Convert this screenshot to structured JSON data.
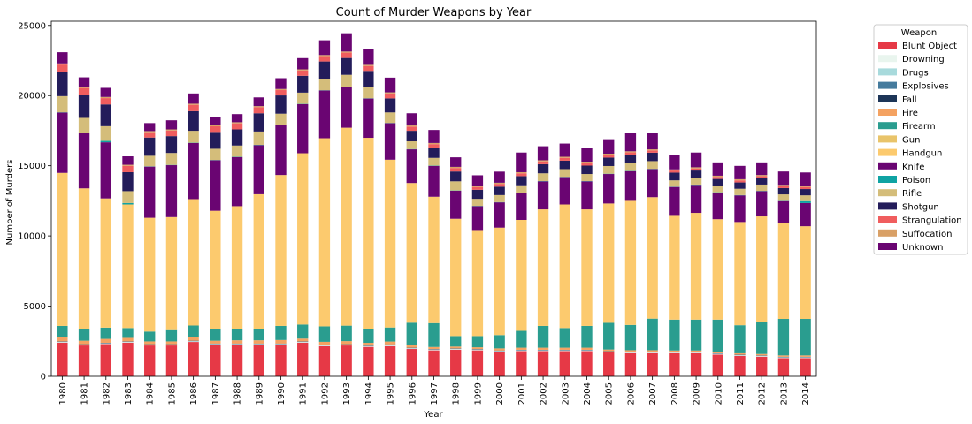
{
  "chart_data": {
    "type": "bar",
    "stacked": true,
    "title": "Count of Murder Weapons by Year",
    "xlabel": "Year",
    "ylabel": "Number of Murders",
    "ylim": [
      0,
      25300
    ],
    "yticks": [
      0,
      5000,
      10000,
      15000,
      20000,
      25000
    ],
    "grid": false,
    "legend_title": "Weapon",
    "legend_position": "outside-right",
    "categories": [
      "1980",
      "1981",
      "1982",
      "1983",
      "1984",
      "1985",
      "1986",
      "1987",
      "1988",
      "1989",
      "1990",
      "1991",
      "1992",
      "1993",
      "1994",
      "1995",
      "1996",
      "1997",
      "1998",
      "1999",
      "2000",
      "2001",
      "2002",
      "2003",
      "2004",
      "2005",
      "2006",
      "2007",
      "2008",
      "2009",
      "2010",
      "2011",
      "2012",
      "2013",
      "2014"
    ],
    "series": [
      {
        "name": "Blunt Object",
        "color": "#e63946",
        "values": [
          2400,
          2200,
          2300,
          2400,
          2200,
          2200,
          2450,
          2250,
          2250,
          2250,
          2250,
          2400,
          2150,
          2200,
          2100,
          2150,
          1950,
          1850,
          1900,
          1850,
          1750,
          1800,
          1800,
          1800,
          1800,
          1700,
          1650,
          1650,
          1650,
          1650,
          1550,
          1450,
          1400,
          1300,
          1300
        ]
      },
      {
        "name": "Drowning",
        "color": "#e9f5ee",
        "values": [
          30,
          30,
          30,
          30,
          30,
          30,
          30,
          30,
          30,
          30,
          30,
          30,
          30,
          30,
          30,
          30,
          30,
          30,
          30,
          30,
          30,
          30,
          30,
          30,
          30,
          30,
          30,
          30,
          30,
          30,
          30,
          30,
          30,
          30,
          30
        ]
      },
      {
        "name": "Drugs",
        "color": "#a8dadc",
        "values": [
          20,
          20,
          20,
          20,
          20,
          20,
          20,
          20,
          20,
          20,
          20,
          20,
          20,
          20,
          20,
          20,
          20,
          20,
          20,
          20,
          20,
          20,
          20,
          20,
          20,
          20,
          20,
          20,
          20,
          20,
          20,
          20,
          20,
          20,
          20
        ]
      },
      {
        "name": "Explosives",
        "color": "#457b9d",
        "values": [
          20,
          20,
          20,
          20,
          20,
          20,
          20,
          20,
          20,
          20,
          20,
          20,
          20,
          20,
          20,
          60,
          20,
          20,
          20,
          20,
          20,
          20,
          20,
          20,
          20,
          20,
          20,
          20,
          20,
          20,
          20,
          20,
          20,
          20,
          20
        ]
      },
      {
        "name": "Fall",
        "color": "#1d3557",
        "values": [
          20,
          20,
          20,
          20,
          20,
          20,
          20,
          20,
          20,
          20,
          20,
          20,
          20,
          20,
          20,
          20,
          20,
          20,
          20,
          20,
          20,
          20,
          20,
          20,
          20,
          20,
          20,
          20,
          20,
          20,
          20,
          20,
          20,
          20,
          20
        ]
      },
      {
        "name": "Fire",
        "color": "#f4a261",
        "values": [
          300,
          250,
          280,
          250,
          200,
          200,
          280,
          200,
          230,
          230,
          250,
          200,
          220,
          220,
          200,
          200,
          180,
          150,
          130,
          130,
          150,
          150,
          150,
          150,
          150,
          120,
          120,
          120,
          100,
          100,
          100,
          100,
          100,
          100,
          100
        ]
      },
      {
        "name": "Firearm",
        "color": "#2a9d8f",
        "values": [
          800,
          800,
          800,
          700,
          700,
          800,
          800,
          800,
          800,
          800,
          1000,
          1000,
          1100,
          1100,
          1000,
          1000,
          1600,
          1700,
          750,
          800,
          950,
          1200,
          1550,
          1400,
          1550,
          1900,
          1800,
          2250,
          2200,
          2200,
          2300,
          2000,
          2300,
          2600,
          2600
        ]
      },
      {
        "name": "Gun",
        "color": "#e9c46a",
        "values": [
          0,
          0,
          0,
          0,
          0,
          0,
          0,
          0,
          0,
          0,
          0,
          0,
          0,
          0,
          0,
          0,
          0,
          0,
          0,
          0,
          0,
          0,
          0,
          0,
          0,
          0,
          0,
          0,
          0,
          0,
          0,
          0,
          0,
          0,
          0
        ]
      },
      {
        "name": "Handgun",
        "color": "#fcca6e",
        "values": [
          10900,
          10050,
          9200,
          8800,
          8100,
          8050,
          9000,
          8450,
          8750,
          9600,
          10750,
          12200,
          13400,
          14100,
          13600,
          11950,
          9950,
          9000,
          8350,
          7550,
          7650,
          7900,
          8300,
          8800,
          8300,
          8500,
          8900,
          8650,
          7450,
          7600,
          7150,
          7350,
          7500,
          6800,
          6600
        ]
      },
      {
        "name": "Knife",
        "color": "#6a0572",
        "values": [
          4300,
          3950,
          4000,
          0,
          3650,
          3700,
          4000,
          3600,
          3500,
          3500,
          3550,
          3500,
          3400,
          2900,
          2800,
          2600,
          2400,
          2200,
          2000,
          1700,
          1800,
          1900,
          2000,
          1950,
          2000,
          2100,
          2050,
          2000,
          2000,
          2000,
          1900,
          1900,
          1800,
          1650,
          1650
        ]
      },
      {
        "name": "Poison",
        "color": "#0fa3a3",
        "values": [
          20,
          20,
          100,
          100,
          20,
          20,
          20,
          20,
          20,
          20,
          20,
          20,
          20,
          20,
          20,
          20,
          20,
          20,
          20,
          20,
          20,
          20,
          20,
          20,
          20,
          20,
          20,
          20,
          20,
          20,
          20,
          20,
          20,
          20,
          200
        ]
      },
      {
        "name": "Rifle",
        "color": "#d4bd7a",
        "values": [
          1150,
          1050,
          1050,
          850,
          750,
          850,
          850,
          800,
          800,
          950,
          800,
          800,
          800,
          850,
          800,
          750,
          550,
          550,
          650,
          500,
          500,
          550,
          550,
          550,
          500,
          550,
          550,
          550,
          450,
          450,
          450,
          450,
          450,
          400,
          350
        ]
      },
      {
        "name": "Shotgun",
        "color": "#231c5a",
        "values": [
          1750,
          1650,
          1550,
          1350,
          1300,
          1200,
          1400,
          1200,
          1150,
          1300,
          1300,
          1200,
          1250,
          1200,
          1150,
          1000,
          750,
          700,
          700,
          650,
          600,
          650,
          650,
          600,
          600,
          600,
          600,
          600,
          550,
          550,
          500,
          450,
          450,
          450,
          450
        ]
      },
      {
        "name": "Strangulation",
        "color": "#f05d5e",
        "values": [
          500,
          480,
          450,
          450,
          380,
          400,
          450,
          400,
          430,
          430,
          380,
          380,
          380,
          380,
          350,
          350,
          300,
          280,
          250,
          200,
          200,
          200,
          200,
          200,
          200,
          200,
          170,
          160,
          150,
          150,
          150,
          150,
          150,
          150,
          150
        ]
      },
      {
        "name": "Suffocation",
        "color": "#d9a066",
        "values": [
          80,
          80,
          80,
          80,
          80,
          80,
          80,
          80,
          80,
          80,
          80,
          80,
          80,
          80,
          80,
          80,
          80,
          80,
          80,
          80,
          80,
          80,
          80,
          80,
          80,
          80,
          80,
          80,
          80,
          80,
          80,
          80,
          80,
          80,
          80
        ]
      },
      {
        "name": "Unknown",
        "color": "#6a0572",
        "values": [
          800,
          680,
          650,
          600,
          570,
          650,
          730,
          570,
          580,
          620,
          770,
          800,
          1050,
          1300,
          1150,
          1050,
          870,
          930,
          680,
          750,
          790,
          1400,
          1000,
          940,
          1000,
          1030,
          1300,
          1200,
          1000,
          1050,
          950,
          950,
          900,
          950,
          950
        ]
      }
    ]
  }
}
